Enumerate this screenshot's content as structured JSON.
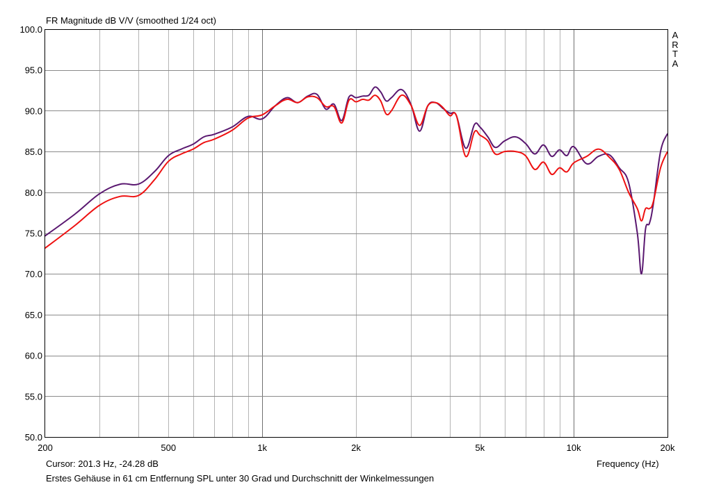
{
  "colors": {
    "background": "#ffffff",
    "grid": "#b4b4b4",
    "axis": "#000000"
  },
  "chart_data": {
    "type": "line",
    "title": "FR Magnitude dB V/V (smoothed 1/24 oct)",
    "xlabel": "Frequency (Hz)",
    "ylabel": "",
    "xscale": "log",
    "xlim": [
      200,
      20000
    ],
    "ylim": [
      50,
      100
    ],
    "y_ticks": [
      "100.0",
      "95.0",
      "90.0",
      "85.0",
      "80.0",
      "75.0",
      "70.0",
      "65.0",
      "60.0",
      "55.0",
      "50.0"
    ],
    "x_ticks": [
      {
        "value": 200,
        "label": "200"
      },
      {
        "value": 500,
        "label": "500"
      },
      {
        "value": 1000,
        "label": "1k"
      },
      {
        "value": 2000,
        "label": "2k"
      },
      {
        "value": 5000,
        "label": "5k"
      },
      {
        "value": 10000,
        "label": "10k"
      },
      {
        "value": 20000,
        "label": "20k"
      }
    ],
    "grid": true,
    "series": [
      {
        "color": "#5a1870",
        "x": [
          200,
          250,
          300,
          350,
          400,
          450,
          500,
          550,
          600,
          650,
          700,
          800,
          900,
          1000,
          1100,
          1200,
          1300,
          1400,
          1500,
          1600,
          1700,
          1800,
          1900,
          2000,
          2100,
          2200,
          2300,
          2400,
          2500,
          2600,
          2800,
          3000,
          3200,
          3400,
          3600,
          3800,
          4000,
          4200,
          4500,
          4800,
          5000,
          5300,
          5600,
          6000,
          6500,
          7000,
          7500,
          8000,
          8500,
          9000,
          9500,
          10000,
          11000,
          12000,
          13000,
          14000,
          15000,
          16000,
          16500,
          17000,
          17500,
          18000,
          19000,
          20000
        ],
        "y": [
          74.6,
          77.3,
          79.8,
          81.0,
          81.0,
          82.5,
          84.5,
          85.3,
          85.9,
          86.8,
          87.1,
          88.0,
          89.3,
          89.0,
          90.6,
          91.6,
          91.0,
          91.8,
          92.0,
          90.2,
          90.8,
          88.8,
          91.7,
          91.6,
          91.8,
          91.9,
          92.9,
          92.3,
          91.2,
          91.6,
          92.6,
          90.8,
          87.5,
          90.6,
          91.0,
          90.3,
          89.7,
          89.4,
          85.4,
          88.3,
          88.0,
          86.8,
          85.5,
          86.3,
          86.8,
          86.0,
          84.7,
          85.8,
          84.4,
          85.2,
          84.5,
          85.6,
          83.5,
          84.4,
          84.6,
          83.0,
          81.2,
          75.0,
          70.0,
          75.5,
          76.2,
          78.5,
          85.0,
          87.2
        ]
      },
      {
        "color": "#ee1111",
        "x": [
          200,
          250,
          300,
          350,
          400,
          450,
          500,
          550,
          600,
          650,
          700,
          800,
          900,
          1000,
          1100,
          1200,
          1300,
          1400,
          1500,
          1600,
          1700,
          1800,
          1900,
          2000,
          2100,
          2200,
          2300,
          2400,
          2500,
          2600,
          2800,
          3000,
          3200,
          3400,
          3600,
          3800,
          4000,
          4200,
          4500,
          4800,
          5000,
          5300,
          5600,
          6000,
          6500,
          7000,
          7500,
          8000,
          8500,
          9000,
          9500,
          10000,
          11000,
          12000,
          13000,
          14000,
          15000,
          16000,
          16500,
          17000,
          17500,
          18000,
          19000,
          20000
        ],
        "y": [
          73.1,
          75.9,
          78.4,
          79.5,
          79.6,
          81.5,
          83.8,
          84.7,
          85.3,
          86.1,
          86.5,
          87.6,
          89.1,
          89.5,
          90.6,
          91.4,
          91.0,
          91.7,
          91.6,
          90.5,
          90.5,
          88.5,
          91.3,
          91.1,
          91.4,
          91.3,
          91.9,
          91.2,
          89.6,
          90.0,
          91.9,
          90.7,
          88.2,
          90.6,
          91.0,
          90.4,
          89.4,
          89.4,
          84.4,
          87.4,
          87.0,
          86.3,
          84.7,
          85.0,
          85.0,
          84.5,
          82.8,
          83.7,
          82.2,
          83.0,
          82.5,
          83.6,
          84.4,
          85.3,
          84.3,
          82.8,
          80.0,
          78.0,
          76.5,
          78.0,
          78.0,
          78.8,
          83.0,
          85.0
        ]
      }
    ]
  },
  "texts": {
    "title": "FR Magnitude dB V/V (smoothed 1/24 oct)",
    "cursor_readout": "Cursor: 201.3 Hz, -24.28 dB",
    "caption": "Erstes Gehäuse in 61 cm Entfernung SPL unter 30 Grad und Durchschnitt der Winkelmessungen",
    "x_axis_label": "Frequency (Hz)",
    "brand_letters": [
      "A",
      "R",
      "T",
      "A"
    ]
  }
}
